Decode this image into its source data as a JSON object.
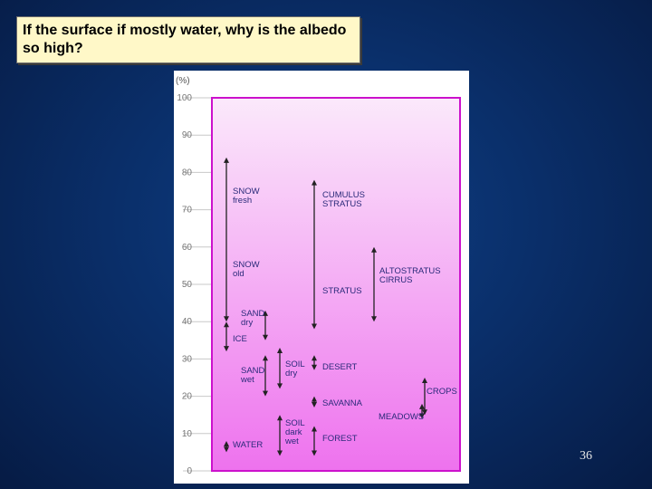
{
  "slide": {
    "title": "If the surface if mostly water, why is the albedo so high?",
    "number": "36"
  },
  "chart_data": {
    "type": "range",
    "yunit": "(%)",
    "ylim": [
      0,
      100
    ],
    "yticks": [
      "0",
      "10",
      "20",
      "30",
      "40",
      "50",
      "60",
      "70",
      "80",
      "90",
      "100"
    ],
    "grid": true,
    "colors": {
      "top": "#fbe9fb",
      "bottom": "#ee72ee",
      "border": "#cc11cc",
      "arrow": "#222222",
      "text": "#2a2a7a"
    },
    "items": [
      {
        "lines": [
          "SNOW",
          "fresh"
        ],
        "low": 40,
        "high": 84
      },
      {
        "lines": [
          "SNOW",
          "old"
        ],
        "low": 40,
        "high": 84
      },
      {
        "lines": [
          "SAND",
          "dry"
        ],
        "low": 35,
        "high": 43
      },
      {
        "lines": [
          "ICE"
        ],
        "low": 32,
        "high": 40
      },
      {
        "lines": [
          "SAND",
          "wet"
        ],
        "low": 20,
        "high": 31
      },
      {
        "lines": [
          "SOIL",
          "dry"
        ],
        "low": 22,
        "high": 33
      },
      {
        "lines": [
          "SOIL",
          "dark",
          "wet"
        ],
        "low": 4,
        "high": 15
      },
      {
        "lines": [
          "WATER"
        ],
        "low": 5,
        "high": 8
      },
      {
        "lines": [
          "CUMULUS",
          "STRATUS"
        ],
        "low": 38,
        "high": 78
      },
      {
        "lines": [
          "STRATUS"
        ],
        "low": 38,
        "high": 78
      },
      {
        "lines": [
          "DESERT"
        ],
        "low": 27,
        "high": 31
      },
      {
        "lines": [
          "SAVANNA"
        ],
        "low": 17,
        "high": 20
      },
      {
        "lines": [
          "FOREST"
        ],
        "low": 4,
        "high": 12
      },
      {
        "lines": [
          "ALTOSTRATUS",
          "CIRRUS"
        ],
        "low": 40,
        "high": 60
      },
      {
        "lines": [
          "MEADOWS"
        ],
        "low": 14,
        "high": 18
      },
      {
        "lines": [
          "CROPS"
        ],
        "low": 15,
        "high": 25
      }
    ]
  }
}
